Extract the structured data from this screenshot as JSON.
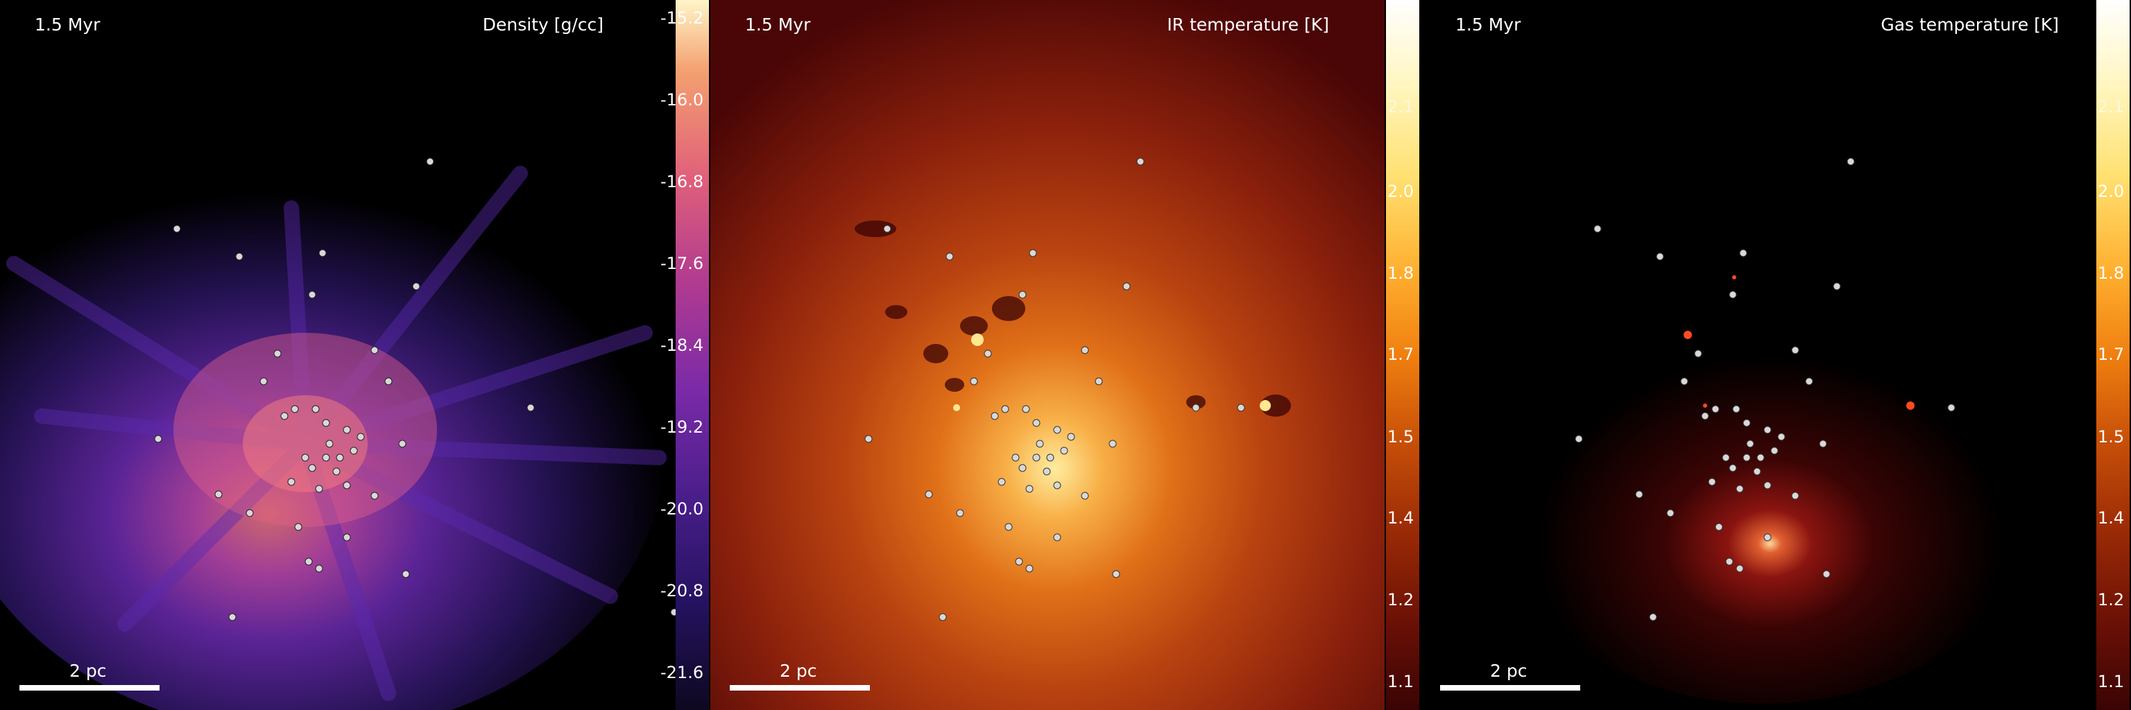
{
  "panels": [
    {
      "time_label": "1.5 Myr",
      "quantity_label": "Density [g/cc]",
      "scale_label": "2 pc",
      "colormap": "plasma-dark",
      "colorbar_ticks": [
        "-15.2",
        "-16.0",
        "-16.8",
        "-17.6",
        "-18.4",
        "-19.2",
        "-20.0",
        "-20.8",
        "-21.6"
      ]
    },
    {
      "time_label": "1.5 Myr",
      "quantity_label": "IR temperature [K]",
      "scale_label": "2 pc",
      "colormap": "afmhot",
      "colorbar_ticks": [
        "2.1",
        "2.0",
        "1.8",
        "1.7",
        "1.5",
        "1.4",
        "1.2",
        "1.1"
      ]
    },
    {
      "time_label": "1.5 Myr",
      "quantity_label": "Gas temperature [K]",
      "scale_label": "2 pc",
      "colormap": "afmhot",
      "colorbar_ticks": [
        "2.1",
        "2.0",
        "1.8",
        "1.7",
        "1.5",
        "1.4",
        "1.2",
        "1.1"
      ]
    }
  ],
  "colors": {
    "density_low": "#1a0f4a",
    "density_mid": "#7a2fb0",
    "density_high": "#f06a6a",
    "ir_low": "#5a0a0a",
    "ir_mid": "#c84a10",
    "ir_high": "#ffe890",
    "gas_low": "#000000",
    "gas_mid": "#6a0a0a",
    "gas_high": "#ffd9a0",
    "star": "#d8d8d8"
  }
}
